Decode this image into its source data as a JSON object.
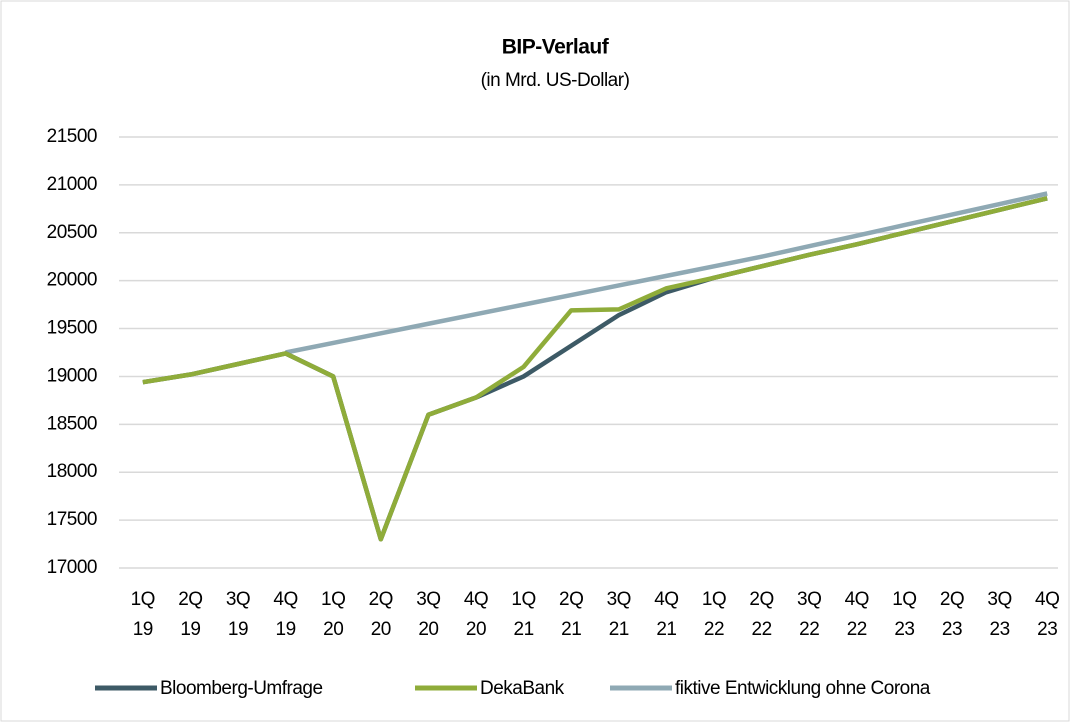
{
  "chart_data": {
    "type": "line",
    "title": "BIP-Verlauf",
    "subtitle": "(in Mrd. US-Dollar)",
    "categories": [
      "1Q 19",
      "2Q 19",
      "3Q 19",
      "4Q 19",
      "1Q 20",
      "2Q 20",
      "3Q 20",
      "4Q 20",
      "1Q 21",
      "2Q 21",
      "3Q 21",
      "4Q 21",
      "1Q 22",
      "2Q 22",
      "3Q 22",
      "4Q 22",
      "1Q 23",
      "2Q 23",
      "3Q 23",
      "4Q 23"
    ],
    "series": [
      {
        "name": "fiktive Entwicklung ohne Corona",
        "color": "#8fa9b4",
        "values": [
          null,
          null,
          null,
          19250,
          19350,
          19450,
          19550,
          19650,
          19750,
          19850,
          19950,
          20050,
          20150,
          20250,
          20360,
          20470,
          20580,
          20690,
          20800,
          20910
        ]
      },
      {
        "name": "Bloomberg-Umfrage",
        "color": "#3d5a66",
        "values": [
          18940,
          19020,
          19130,
          19240,
          19000,
          17300,
          18600,
          18780,
          19000,
          19320,
          19640,
          19880,
          20030,
          20150,
          20270,
          20380,
          20500,
          20620,
          20740,
          20860
        ]
      },
      {
        "name": "DekaBank",
        "color": "#8fac3a",
        "values": [
          18940,
          19020,
          19130,
          19240,
          19000,
          17300,
          18600,
          18780,
          19100,
          19690,
          19700,
          19920,
          20030,
          20150,
          20270,
          20380,
          20500,
          20620,
          20740,
          20860
        ]
      }
    ],
    "legend_order": [
      "Bloomberg-Umfrage",
      "DekaBank",
      "fiktive Entwicklung ohne Corona"
    ],
    "ylim": [
      17000,
      21500
    ],
    "yticks": [
      17000,
      17500,
      18000,
      18500,
      19000,
      19500,
      20000,
      20500,
      21000,
      21500
    ],
    "grid": true,
    "legend": "bottom"
  }
}
